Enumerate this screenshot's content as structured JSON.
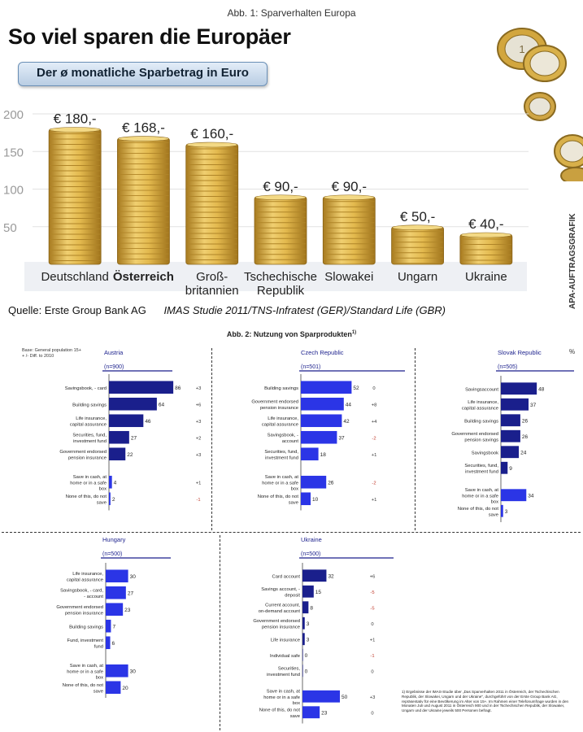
{
  "figure1": {
    "caption": "Abb. 1: Sparverhalten Europa",
    "title": "So viel sparen die Europäer",
    "subtitle": "Der ø monatliche Sparbetrag in Euro",
    "source": "Quelle: Erste Group Bank AG",
    "source_detail": "IMAS Studie 2011/TNS-Infratest (GER)/Standard Life (GBR)",
    "side_label": "APA-AUFTRAGSGRAFIK"
  },
  "figure2": {
    "caption": "Abb. 2: Nutzung von Sparprodukten",
    "caption_sup": "1)",
    "base_note": [
      "Base: General population 15+",
      "+ /- Diff. to 2010"
    ],
    "percent_sign": "%",
    "footnote": "1) Ergebnisse der IMAS-Studie über „Das Sparverhalten 2011 in Österreich, der Tschechischen Republik, der Slowakei, Ungarn und der Ukraine\", durchgeführt von der Erste Group Bank AG, repräsentativ für eine Bevölkerung im Alter von 15+. Im Rahmen einer Telefonumfrage wurden in den Monaten Juli und August 2011 in Österreich 900 und in der Tschechischen Republik, der Slowakei, Ungarn und der Ukraine jeweils 500 Personen befragt."
  },
  "colors": {
    "bar_dark": "#1a1f8c",
    "bar_bright": "#2b35e6",
    "pos_diff": "#333333",
    "neg_diff": "#c0392b",
    "coin_gold": "#d8b04a"
  },
  "chart_data": [
    {
      "type": "bar",
      "title": "Der ø monatliche Sparbetrag in Euro",
      "categories": [
        "Deutschland",
        "Österreich",
        "Groß-\nbritannien",
        "Tschechische\nRepublik",
        "Slowakei",
        "Ungarn",
        "Ukraine"
      ],
      "values": [
        180,
        168,
        160,
        90,
        90,
        50,
        40
      ],
      "value_labels": [
        "€ 180,-",
        "€ 168,-",
        "€ 160,-",
        "€ 90,-",
        "€ 90,-",
        "€ 50,-",
        "€ 40,-"
      ],
      "highlight_category": "Österreich",
      "yticks": [
        50,
        100,
        150,
        200
      ],
      "ylim": [
        0,
        200
      ],
      "xlabel": "",
      "ylabel": ""
    },
    {
      "type": "bar",
      "orientation": "horizontal",
      "title": "Austria",
      "n_label": "(n=900)",
      "categories": [
        "Savingsbook, - card",
        "Building savings",
        "Life insurance, capital assurance",
        "Securities, fund, investment fund",
        "Government endorsed pension insurance",
        "Save in cash, at home or in a safe box",
        "None of this, do not save"
      ],
      "values": [
        86,
        64,
        46,
        27,
        22,
        4,
        2
      ],
      "diffs": [
        "+3",
        "+6",
        "+3",
        "+2",
        "+3",
        "+1",
        "-1"
      ],
      "xlim": [
        0,
        100
      ]
    },
    {
      "type": "bar",
      "orientation": "horizontal",
      "title": "Czech Republic",
      "n_label": "(n=501)",
      "categories": [
        "Building savings",
        "Government endorsed pension insurance",
        "Life insurance, capital assurance",
        "Savingsbook, - account",
        "Securities, fund, investment fund",
        "Save in cash, at home or in a safe box",
        "None of this, do not save"
      ],
      "values": [
        52,
        44,
        42,
        37,
        18,
        26,
        10
      ],
      "diffs": [
        "0",
        "+8",
        "+4",
        "-2",
        "+1",
        "-2",
        "+1"
      ],
      "xlim": [
        0,
        100
      ]
    },
    {
      "type": "bar",
      "orientation": "horizontal",
      "title": "Slovak Republic",
      "n_label": "(n=505)",
      "categories": [
        "Savingsaccount",
        "Life insurance, capital assurance",
        "Building savings",
        "Government endorsed pension savings",
        "Savingsbook",
        "Securities, fund, investment fund",
        "Save in cash, at home or in a safe box",
        "None of this, do not save"
      ],
      "values": [
        48,
        37,
        26,
        26,
        24,
        9,
        34,
        3
      ],
      "diffs": [
        "",
        "",
        "",
        "",
        "",
        "",
        "",
        ""
      ],
      "xlim": [
        0,
        100
      ]
    },
    {
      "type": "bar",
      "orientation": "horizontal",
      "title": "Hungary",
      "n_label": "(n=500)",
      "categories": [
        "Life insurance, capital assurance",
        "Savingsbook, - card, - account",
        "Government endorsed pension insurance",
        "Building savings",
        "Fund, investment fund",
        "Save in cash, at home or in a safe box",
        "None of this, do not save"
      ],
      "values": [
        30,
        27,
        23,
        7,
        6,
        30,
        20
      ],
      "diffs": [
        "",
        "",
        "",
        "",
        "",
        "",
        ""
      ],
      "xlim": [
        0,
        100
      ]
    },
    {
      "type": "bar",
      "orientation": "horizontal",
      "title": "Ukraine",
      "n_label": "(n=500)",
      "categories": [
        "Card account",
        "Savings account, - deposit",
        "Current account, on-demand account",
        "Government endorsed pension insurance",
        "Life insurance",
        "Individual safe",
        "Securities, investment fund",
        "Save in cash, at home or in a safe box",
        "None of this, do not save"
      ],
      "values": [
        32,
        15,
        8,
        3,
        3,
        0,
        0,
        50,
        23
      ],
      "diffs": [
        "+6",
        "-5",
        "-5",
        "0",
        "+1",
        "-1",
        "0",
        "+3",
        "0"
      ],
      "xlim": [
        0,
        100
      ]
    }
  ]
}
